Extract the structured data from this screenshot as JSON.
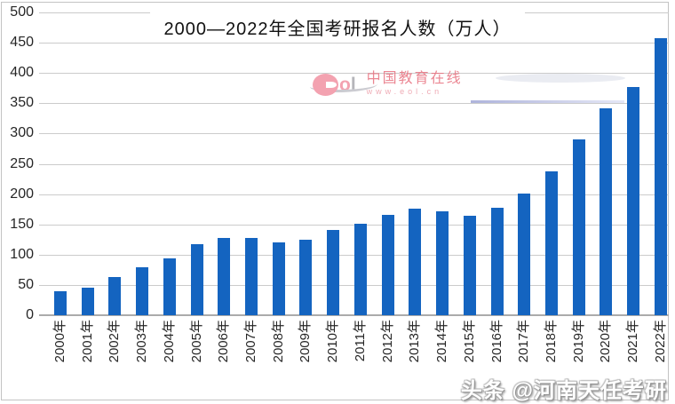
{
  "chart_data": {
    "type": "bar",
    "title": "2000—2022年全国考研报名人数（万人）",
    "categories": [
      "2000年",
      "2001年",
      "2002年",
      "2003年",
      "2004年",
      "2005年",
      "2006年",
      "2007年",
      "2008年",
      "2009年",
      "2010年",
      "2011年",
      "2012年",
      "2013年",
      "2014年",
      "2015年",
      "2016年",
      "2017年",
      "2018年",
      "2019年",
      "2020年",
      "2021年",
      "2022年"
    ],
    "values": [
      39.2,
      46,
      62.4,
      79.7,
      94.5,
      117.2,
      127.1,
      128.2,
      120,
      124.6,
      140.6,
      151.1,
      165.6,
      176,
      172,
      164.9,
      177,
      201,
      238,
      290,
      341,
      377,
      457
    ],
    "xlabel": "",
    "ylabel": "",
    "ylim": [
      0,
      500
    ],
    "yticks": [
      0,
      50,
      100,
      150,
      200,
      250,
      300,
      350,
      400,
      450,
      500
    ],
    "grid": "horizontal gridlines on",
    "legend": "none",
    "bar_color": "#1464c0",
    "gridline_color": "#cbcbcb",
    "axis_color": "#ababab"
  },
  "watermarks": {
    "eol": {
      "logo_letters": [
        "o",
        "l"
      ],
      "site_name": "中国教育在线",
      "site_url": "www.eol.cn"
    },
    "toutiao": "头条 @河南天任考研"
  }
}
